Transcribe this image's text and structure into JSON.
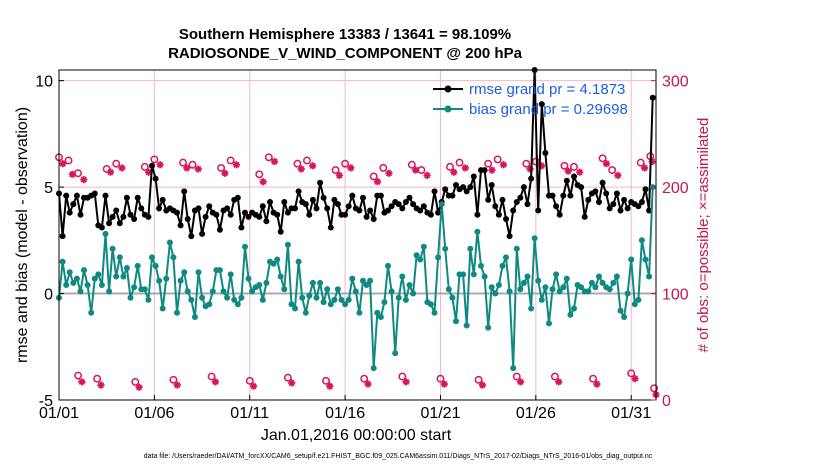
{
  "chart_data": {
    "type": "line",
    "title": "Southern Hemisphere 13383 / 13641 = 98.109%",
    "subtitle": "RADIOSONDE_V_WIND_COMPONENT @ 200 hPa",
    "xlabel": "Jan.01,2016 00:00:00 start",
    "ylabel": "rmse and bias (model - observation)",
    "ylabel_right": "# of obs: o=possible; ×=assimilated",
    "footer": "data file: /Users/raeder/DAI/ATM_forcXX/CAM6_setup/f.e21.FHIST_BGC.f09_025.CAM6assim.011/Diags_NTrS_2017-02/Diags_NTrS_2016-01/obs_diag_output.nc",
    "x_ticks": [
      "01/01",
      "01/06",
      "01/11",
      "01/16",
      "01/21",
      "01/26",
      "01/31"
    ],
    "y_ticks": [
      "-5",
      "0",
      "5",
      "10"
    ],
    "y_right_ticks": [
      "0",
      "100",
      "200",
      "300"
    ],
    "ylim": [
      -5,
      10.5
    ],
    "ylim_right": [
      0,
      310
    ],
    "x_range_days": [
      1,
      32.3
    ],
    "colors": {
      "rmse": "#000000",
      "bias": "#0e8a82",
      "obs": "#d9145e",
      "legend_text": "#1d5fe0",
      "grid": "#f2b8c9"
    },
    "legend": [
      {
        "label": "rmse grand pr = 4.1873",
        "series": "rmse"
      },
      {
        "label": "bias grand pr = 0.29698",
        "series": "bias"
      }
    ],
    "series": [
      {
        "name": "rmse",
        "values": [
          4.7,
          2.7,
          4.6,
          3.8,
          4.2,
          4.6,
          3.7,
          4.5,
          4.5,
          4.6,
          4.7,
          3.2,
          3.1,
          4.6,
          3.3,
          3.6,
          3.9,
          3.3,
          3.6,
          4.5,
          3.7,
          3.5,
          4.5,
          4.0,
          3.7,
          3.6,
          6.0,
          5.4,
          4.0,
          4.4,
          3.9,
          4.0,
          3.9,
          3.8,
          3.2,
          4.8,
          3.5,
          2.7,
          3.9,
          4.0,
          2.8,
          3.6,
          4.1,
          3.8,
          3.7,
          3.0,
          3.9,
          4.0,
          3.7,
          4.4,
          4.5,
          3.1,
          3.8,
          3.6,
          3.8,
          3.7,
          3.6,
          4.1,
          3.4,
          4.3,
          3.8,
          3.7,
          2.9,
          4.3,
          3.8,
          4.0,
          4.0,
          4.8,
          4.3,
          4.2,
          3.7,
          4.4,
          4.0,
          5.2,
          4.5,
          4.0,
          3.1,
          4.4,
          4.2,
          3.7,
          3.7,
          4.1,
          4.6,
          4.0,
          3.9,
          4.5,
          3.6,
          3.9,
          3.5,
          4.6,
          4.6,
          3.8,
          3.9,
          4.1,
          4.3,
          4.2,
          4.0,
          4.3,
          4.5,
          4.2,
          4.0,
          3.9,
          4.1,
          3.8,
          3.7,
          4.8,
          3.8,
          4.3,
          4.9,
          4.6,
          4.6,
          5.1,
          4.9,
          5.0,
          4.8,
          5.0,
          5.5,
          3.7,
          5.8,
          5.8,
          4.4,
          5.1,
          4.1,
          3.7,
          4.4,
          3.5,
          2.7,
          3.9,
          4.3,
          4.5,
          5.0,
          4.2,
          5.4,
          10.5,
          3.9,
          8.9,
          6.6,
          4.6,
          4.6,
          4.1,
          3.7,
          4.6,
          5.3,
          4.6,
          5.5,
          5.1,
          5.0,
          3.6,
          4.4,
          4.7,
          4.8,
          4.3,
          5.2,
          4.7,
          4.0,
          4.2,
          4.7,
          3.9,
          4.4,
          4.0,
          4.3,
          4.2,
          4.1,
          4.3,
          4.9,
          3.9,
          9.2
        ]
      },
      {
        "name": "bias",
        "values": [
          -0.2,
          1.5,
          0.4,
          1.0,
          0.5,
          0.7,
          0.1,
          1.1,
          0.4,
          -0.9,
          0.7,
          0.9,
          0.4,
          2.8,
          0.1,
          2.1,
          0.8,
          1.7,
          0.8,
          1.2,
          -0.2,
          0.3,
          1.3,
          0.2,
          0.2,
          -0.3,
          1.7,
          1.3,
          0.6,
          -0.7,
          0.7,
          2.4,
          1.7,
          -0.9,
          0.6,
          1.0,
          0.1,
          -0.3,
          -1.1,
          1.0,
          -0.2,
          -0.6,
          -0.5,
          0.1,
          1.1,
          1.1,
          0.1,
          -0.2,
          0.9,
          -0.3,
          -0.5,
          -0.2,
          2.2,
          0.7,
          0.1,
          0.3,
          0.4,
          -0.3,
          0.5,
          1.5,
          1.4,
          1.6,
          0.8,
          0.2,
          2.3,
          -0.5,
          -0.7,
          1.5,
          -0.2,
          -0.9,
          -0.1,
          0.5,
          -0.2,
          0.5,
          -0.4,
          0.2,
          -0.5,
          -0.3,
          0.2,
          -0.3,
          -0.5,
          -0.3,
          0.7,
          0.1,
          -0.9,
          0.6,
          0.4,
          0.6,
          -3.5,
          -0.9,
          -1.1,
          -0.4,
          1.3,
          0.1,
          -2.8,
          -0.2,
          0.8,
          -0.3,
          0.4,
          0.0,
          1.8,
          1.6,
          2.2,
          -0.4,
          -0.5,
          -0.9,
          1.7,
          4.2,
          2.1,
          0.2,
          -0.2,
          -1.3,
          0.9,
          0.9,
          -1.5,
          2.1,
          0.9,
          2.9,
          1.3,
          0.8,
          -1.6,
          0.3,
          0.0,
          0.4,
          1.3,
          1.7,
          0.1,
          -3.5,
          2.1,
          0.2,
          0.5,
          0.8,
          -0.7,
          2.6,
          0.6,
          -0.3,
          0.3,
          -1.4,
          0.2,
          0.9,
          0.1,
          0.3,
          0.7,
          -1.0,
          -0.7,
          0.4,
          0.3,
          0.1,
          0.1,
          0.5,
          0.3,
          0.8,
          0.5,
          0.3,
          0.2,
          0.5,
          0.8,
          -0.8,
          -1.1,
          0.0,
          1.6,
          -0.5,
          -0.3,
          2.5,
          1.6,
          0.8,
          5.0
        ]
      },
      {
        "name": "obs_possible",
        "axis": "right",
        "values": [
          [
            1,
            228
          ],
          [
            1.5,
            225
          ],
          [
            2,
            213
          ],
          [
            3.5,
            217
          ],
          [
            4,
            222
          ],
          [
            5.5,
            219
          ],
          [
            6,
            226
          ],
          [
            7.5,
            223
          ],
          [
            8,
            221
          ],
          [
            9.5,
            218
          ],
          [
            10,
            225
          ],
          [
            11.5,
            212
          ],
          [
            12,
            228
          ],
          [
            13.5,
            222
          ],
          [
            14,
            225
          ],
          [
            15.5,
            216
          ],
          [
            16,
            222
          ],
          [
            17.5,
            210
          ],
          [
            18,
            218
          ],
          [
            19.5,
            221
          ],
          [
            20,
            216
          ],
          [
            21.5,
            219
          ],
          [
            22,
            223
          ],
          [
            23.5,
            222
          ],
          [
            24,
            226
          ],
          [
            25.5,
            222
          ],
          [
            26,
            224
          ],
          [
            27.5,
            220
          ],
          [
            28,
            219
          ],
          [
            29.5,
            227
          ],
          [
            30,
            216
          ],
          [
            31.5,
            223
          ],
          [
            32,
            229
          ],
          [
            2,
            23
          ],
          [
            3,
            20
          ],
          [
            5,
            17
          ],
          [
            7,
            19
          ],
          [
            9,
            22
          ],
          [
            11,
            18
          ],
          [
            13,
            21
          ],
          [
            15,
            18
          ],
          [
            17,
            20
          ],
          [
            19,
            22
          ],
          [
            21,
            20
          ],
          [
            23,
            19
          ],
          [
            25,
            22
          ],
          [
            27,
            22
          ],
          [
            29,
            20
          ],
          [
            31,
            25
          ],
          [
            32.2,
            11
          ]
        ]
      },
      {
        "name": "obs_assimilated",
        "axis": "right",
        "values": [
          [
            1.2,
            222
          ],
          [
            1.7,
            212
          ],
          [
            2.3,
            207
          ],
          [
            3.7,
            214
          ],
          [
            4.3,
            218
          ],
          [
            5.7,
            214
          ],
          [
            6.3,
            221
          ],
          [
            7.7,
            218
          ],
          [
            8.3,
            217
          ],
          [
            9.7,
            213
          ],
          [
            10.3,
            221
          ],
          [
            11.7,
            205
          ],
          [
            12.3,
            224
          ],
          [
            13.7,
            217
          ],
          [
            14.3,
            220
          ],
          [
            15.7,
            211
          ],
          [
            16.3,
            218
          ],
          [
            17.7,
            205
          ],
          [
            18.3,
            213
          ],
          [
            19.7,
            216
          ],
          [
            20.3,
            211
          ],
          [
            21.7,
            214
          ],
          [
            22.3,
            218
          ],
          [
            23.7,
            216
          ],
          [
            24.3,
            221
          ],
          [
            25.7,
            217
          ],
          [
            26.3,
            220
          ],
          [
            27.7,
            215
          ],
          [
            28.3,
            214
          ],
          [
            29.7,
            222
          ],
          [
            30.3,
            211
          ],
          [
            31.7,
            218
          ],
          [
            32.1,
            224
          ],
          [
            2.2,
            17
          ],
          [
            3.2,
            14
          ],
          [
            5.2,
            12
          ],
          [
            7.2,
            14
          ],
          [
            9.2,
            17
          ],
          [
            11.2,
            13
          ],
          [
            13.2,
            16
          ],
          [
            15.2,
            13
          ],
          [
            17.2,
            15
          ],
          [
            19.2,
            17
          ],
          [
            21.2,
            15
          ],
          [
            23.2,
            14
          ],
          [
            25.2,
            17
          ],
          [
            27.2,
            17
          ],
          [
            29.2,
            15
          ],
          [
            31.2,
            20
          ],
          [
            32.3,
            5
          ]
        ]
      }
    ]
  }
}
